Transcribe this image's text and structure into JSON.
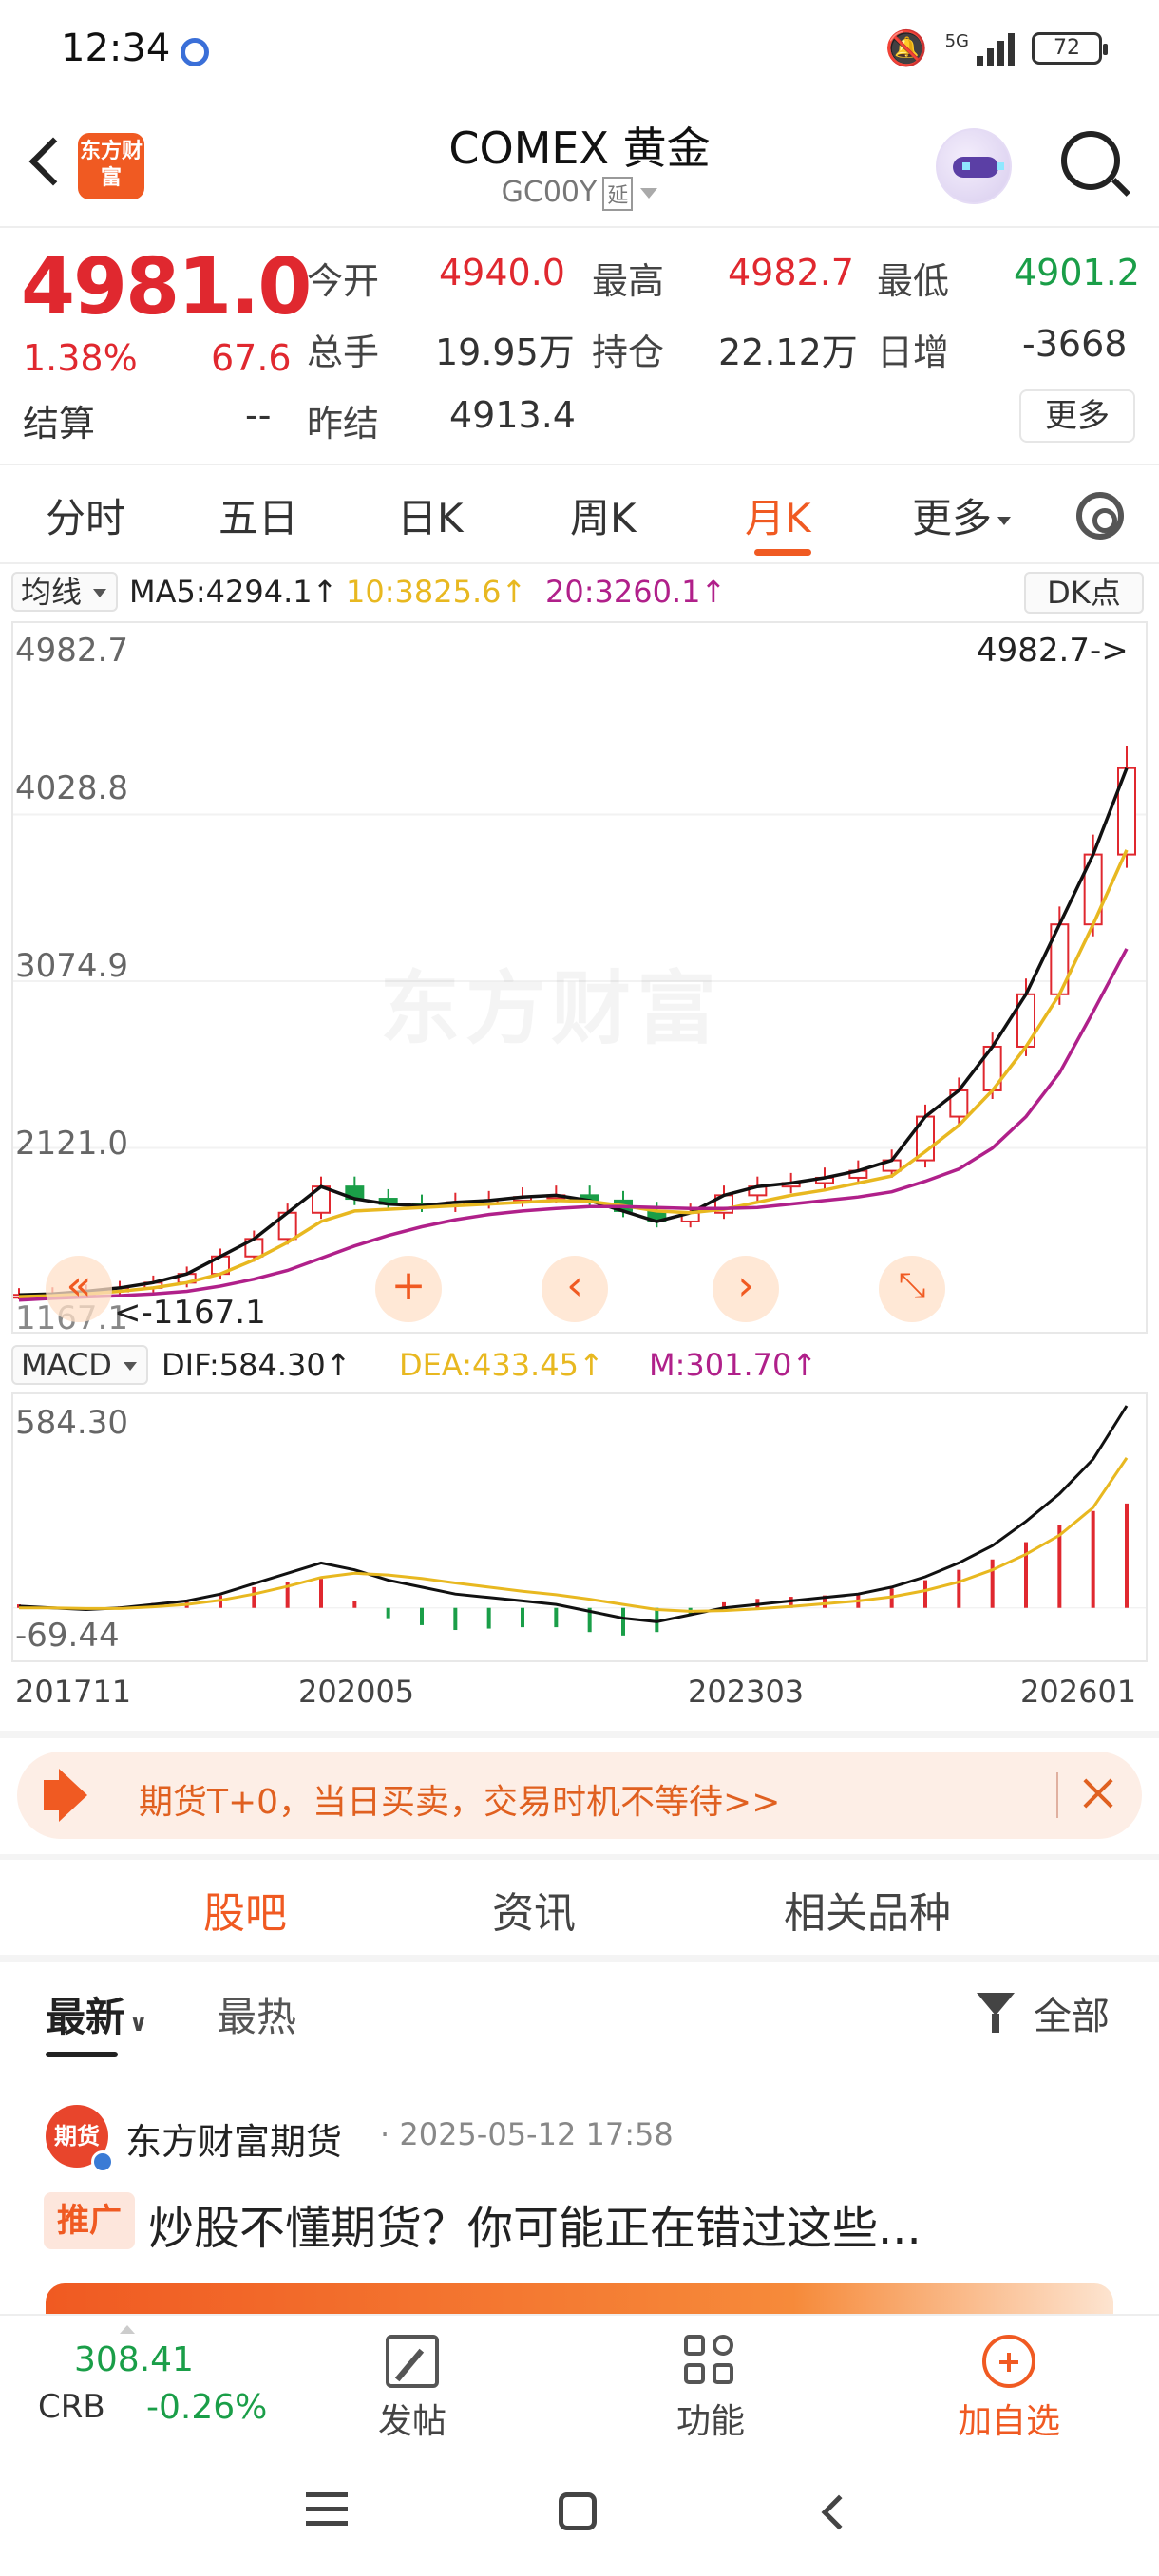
{
  "status_bar": {
    "time": "12:34",
    "network": "5G",
    "battery": "72"
  },
  "header": {
    "title": "COMEX 黄金",
    "code": "GC00Y",
    "delay_tag": "延"
  },
  "logo_text": "东方财富",
  "quote": {
    "price": "4981.0",
    "change_pct": "1.38%",
    "change_abs": "67.6",
    "open_label": "今开",
    "open": "4940.0",
    "high_label": "最高",
    "high": "4982.7",
    "low_label": "最低",
    "low": "4901.2",
    "volume_label": "总手",
    "volume": "19.95万",
    "oi_label": "持仓",
    "oi": "22.12万",
    "day_inc_label": "日增",
    "day_inc": "-3668",
    "settle_label": "结算",
    "settle": "--",
    "prev_settle_label": "昨结",
    "prev_settle": "4913.4",
    "more_label": "更多"
  },
  "tabs": [
    "分时",
    "五日",
    "日K",
    "周K",
    "月K",
    "更多"
  ],
  "active_tab": "月K",
  "kline": {
    "indicator_select": "均线",
    "ma5": "MA5:4294.1↑",
    "ma10": "10:3825.6↑",
    "ma20": "20:3260.1↑",
    "dk_button": "DK点",
    "y_labels": [
      "4982.7",
      "4028.8",
      "3074.9",
      "2121.0",
      "1167.1"
    ],
    "max_marker": "4982.7->",
    "min_marker": "<-1167.1",
    "watermark": "东方财富"
  },
  "macd": {
    "indicator_select": "MACD",
    "dif": "DIF:584.30↑",
    "dea": "DEA:433.45↑",
    "m": "M:301.70↑",
    "y_labels": [
      "584.30",
      "-69.44"
    ]
  },
  "x_labels": [
    "201711",
    "202005",
    "202303",
    "202601"
  ],
  "colors": {
    "up": "#e0282f",
    "down": "#1a9e48",
    "ma5": "#111111",
    "ma10": "#e8b820",
    "ma20": "#b0208a",
    "accent": "#f05a22"
  },
  "chart_data": [
    {
      "type": "candlestick",
      "title": "",
      "x_range": [
        "201711",
        "202601"
      ],
      "ylim": [
        1167.1,
        4982.7
      ],
      "series": [
        {
          "name": "MA5",
          "values": [
            1280,
            1285,
            1300,
            1320,
            1350,
            1400,
            1500,
            1600,
            1750,
            1900,
            1830,
            1800,
            1790,
            1810,
            1820,
            1840,
            1850,
            1820,
            1760,
            1700,
            1750,
            1850,
            1900,
            1920,
            1950,
            1990,
            2050,
            2300,
            2450,
            2700,
            3000,
            3400,
            3800,
            4294.1
          ]
        },
        {
          "name": "10",
          "values": [
            1270,
            1275,
            1285,
            1300,
            1320,
            1350,
            1400,
            1480,
            1580,
            1700,
            1760,
            1770,
            1780,
            1790,
            1800,
            1810,
            1820,
            1815,
            1790,
            1760,
            1750,
            1770,
            1810,
            1850,
            1880,
            1920,
            1960,
            2100,
            2250,
            2450,
            2700,
            3000,
            3400,
            3825.6
          ]
        },
        {
          "name": "20",
          "values": [
            1250,
            1260,
            1268,
            1275,
            1285,
            1300,
            1330,
            1370,
            1420,
            1490,
            1560,
            1620,
            1670,
            1710,
            1740,
            1760,
            1775,
            1785,
            1785,
            1780,
            1775,
            1775,
            1780,
            1800,
            1820,
            1840,
            1870,
            1930,
            2000,
            2120,
            2300,
            2550,
            2900,
            3260.1
          ]
        }
      ]
    },
    {
      "type": "bar",
      "title": "MACD",
      "ylim": [
        -69.44,
        584.3
      ],
      "series": [
        {
          "name": "DIF",
          "values": [
            5,
            0,
            -5,
            0,
            10,
            20,
            40,
            70,
            100,
            130,
            110,
            80,
            60,
            40,
            30,
            20,
            10,
            -10,
            -30,
            -40,
            -20,
            0,
            10,
            20,
            30,
            40,
            60,
            90,
            130,
            180,
            250,
            330,
            430,
            584.3
          ]
        },
        {
          "name": "DEA",
          "values": [
            0,
            0,
            -2,
            -2,
            3,
            10,
            22,
            40,
            62,
            88,
            100,
            95,
            85,
            72,
            60,
            48,
            38,
            25,
            10,
            -5,
            -10,
            -8,
            -3,
            4,
            12,
            20,
            32,
            50,
            75,
            110,
            155,
            210,
            290,
            433.45
          ]
        },
        {
          "name": "M",
          "values": [
            10,
            0,
            -6,
            4,
            14,
            20,
            36,
            60,
            76,
            84,
            20,
            -30,
            -50,
            -64,
            -60,
            -56,
            -56,
            -70,
            -80,
            -70,
            -20,
            16,
            26,
            32,
            36,
            40,
            56,
            80,
            110,
            140,
            190,
            240,
            280,
            301.7
          ]
        }
      ]
    }
  ],
  "promo": {
    "text": "期货T+0，当日买卖，交易时机不等待>>"
  },
  "sub_tabs": [
    "股吧",
    "资讯",
    "相关品种"
  ],
  "filter": {
    "latest": "最新",
    "hot": "最热",
    "all": "全部"
  },
  "post": {
    "avatar_text": "期货",
    "author": "东方财富期货",
    "time": "· 2025-05-12 17:58",
    "tag": "推广",
    "title": "炒股不懂期货？你可能正在错过这些..."
  },
  "bottom_nav": {
    "index_value": "308.41",
    "index_name": "CRB",
    "index_change": "-0.26%",
    "post_label": "发帖",
    "func_label": "功能",
    "add_label": "加自选"
  }
}
